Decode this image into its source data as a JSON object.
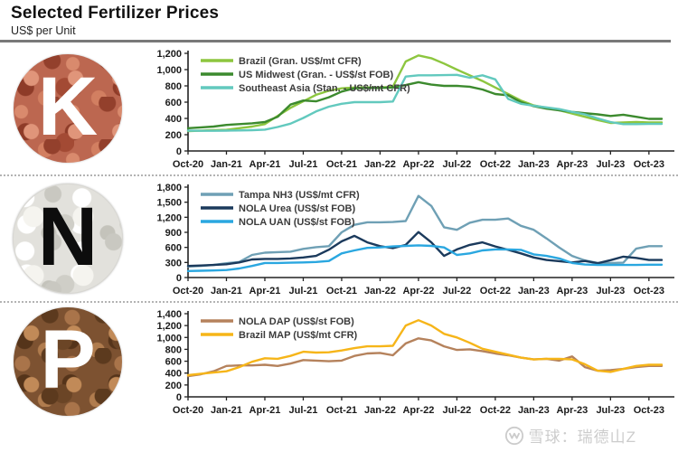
{
  "header": {
    "title": "Selected Fertilizer Prices",
    "subtitle": "US$ per Unit"
  },
  "watermark": {
    "text": "雪球：瑞德山Z",
    "logo": "xueqiu-snowball"
  },
  "chart_data": [
    {
      "id": "potash",
      "type": "line",
      "icon_letter": "K",
      "ylim": [
        0,
        1200
      ],
      "ytick_step": 200,
      "x_start": "Oct-20",
      "x_end": "Oct-23",
      "x_frequency": "monthly",
      "x_tick_labels": [
        "Oct-20",
        "Jan-21",
        "Apr-21",
        "Jul-21",
        "Oct-21",
        "Jan-22",
        "Apr-22",
        "Jul-22",
        "Oct-22",
        "Jan-23",
        "Apr-23",
        "Jul-23",
        "Oct-23"
      ],
      "legend_position": "top-left",
      "series": [
        {
          "name": "Brazil (Gran. US$/mt CFR)",
          "color": "#8DC63F",
          "values": [
            245,
            250,
            255,
            260,
            280,
            300,
            330,
            430,
            530,
            610,
            690,
            740,
            770,
            780,
            780,
            780,
            790,
            1100,
            1175,
            1140,
            1075,
            1000,
            930,
            860,
            780,
            700,
            620,
            560,
            530,
            500,
            460,
            420,
            380,
            345,
            350,
            355,
            350
          ]
        },
        {
          "name": "US Midwest (Gran. - US$/st FOB)",
          "color": "#3C8A2E",
          "values": [
            280,
            290,
            300,
            320,
            330,
            340,
            355,
            420,
            570,
            620,
            610,
            660,
            730,
            770,
            775,
            775,
            780,
            810,
            845,
            815,
            800,
            800,
            790,
            755,
            700,
            685,
            600,
            550,
            520,
            500,
            480,
            465,
            450,
            430,
            445,
            420,
            395
          ]
        },
        {
          "name": "Southeast Asia (Stan. - US$/mt CFR)",
          "color": "#62C9BE",
          "values": [
            250,
            248,
            248,
            250,
            252,
            255,
            262,
            295,
            335,
            405,
            485,
            545,
            580,
            600,
            600,
            600,
            608,
            915,
            930,
            930,
            932,
            935,
            900,
            930,
            880,
            640,
            580,
            555,
            535,
            515,
            480,
            450,
            400,
            355,
            330,
            330,
            332
          ]
        }
      ]
    },
    {
      "id": "nitrogen",
      "type": "line",
      "icon_letter": "N",
      "ylim": [
        0,
        1800
      ],
      "ytick_step": 300,
      "x_start": "Oct-20",
      "x_end": "Oct-23",
      "x_frequency": "monthly",
      "x_tick_labels": [
        "Oct-20",
        "Jan-21",
        "Apr-21",
        "Jul-21",
        "Oct-21",
        "Jan-22",
        "Apr-22",
        "Jul-22",
        "Oct-22",
        "Jan-23",
        "Apr-23",
        "Jul-23",
        "Oct-23"
      ],
      "legend_position": "top-left",
      "series": [
        {
          "name": "Tampa NH3 (US$/mt CFR)",
          "color": "#6FA0B5",
          "values": [
            220,
            230,
            250,
            285,
            310,
            450,
            495,
            505,
            515,
            570,
            605,
            625,
            900,
            1050,
            1100,
            1100,
            1105,
            1125,
            1625,
            1425,
            1000,
            950,
            1090,
            1150,
            1150,
            1175,
            1030,
            950,
            780,
            595,
            430,
            340,
            290,
            290,
            295,
            575,
            625
          ]
        },
        {
          "name": "NOLA Urea (US$/st FOB)",
          "color": "#1B3A5C",
          "values": [
            230,
            240,
            250,
            265,
            300,
            360,
            370,
            370,
            380,
            400,
            430,
            555,
            720,
            830,
            700,
            625,
            585,
            650,
            905,
            700,
            430,
            560,
            650,
            700,
            620,
            550,
            480,
            400,
            350,
            325,
            300,
            330,
            285,
            345,
            415,
            390,
            350
          ]
        },
        {
          "name": "NOLA UAN (US$/st FOB)",
          "color": "#2AA7E0",
          "values": [
            130,
            135,
            140,
            150,
            180,
            230,
            290,
            290,
            295,
            300,
            310,
            330,
            480,
            540,
            590,
            600,
            620,
            630,
            640,
            630,
            600,
            450,
            480,
            540,
            560,
            560,
            550,
            460,
            430,
            380,
            290,
            260,
            250,
            250,
            250,
            250,
            255
          ]
        }
      ]
    },
    {
      "id": "phosphate",
      "type": "line",
      "icon_letter": "P",
      "ylim": [
        0,
        1400
      ],
      "ytick_step": 200,
      "x_start": "Oct-20",
      "x_end": "Oct-23",
      "x_frequency": "monthly",
      "x_tick_labels": [
        "Oct-20",
        "Jan-21",
        "Apr-21",
        "Jul-21",
        "Oct-21",
        "Jan-22",
        "Apr-22",
        "Jul-22",
        "Oct-22",
        "Jan-23",
        "Apr-23",
        "Jul-23",
        "Oct-23"
      ],
      "legend_position": "top-left",
      "series": [
        {
          "name": "NOLA DAP (US$/st FOB)",
          "color": "#B5825C",
          "values": [
            350,
            380,
            430,
            520,
            530,
            530,
            540,
            520,
            560,
            620,
            610,
            600,
            610,
            690,
            730,
            740,
            700,
            900,
            985,
            950,
            850,
            790,
            800,
            770,
            730,
            700,
            660,
            630,
            640,
            610,
            680,
            500,
            440,
            450,
            470,
            500,
            520
          ]
        },
        {
          "name": "Brazil MAP (US$/mt CFR)",
          "color": "#F6B519",
          "values": [
            365,
            390,
            410,
            430,
            500,
            590,
            650,
            640,
            690,
            760,
            745,
            750,
            780,
            820,
            850,
            850,
            860,
            1200,
            1290,
            1200,
            1060,
            1000,
            910,
            810,
            760,
            710,
            660,
            630,
            640,
            640,
            630,
            550,
            440,
            420,
            470,
            520,
            540
          ]
        }
      ]
    }
  ]
}
